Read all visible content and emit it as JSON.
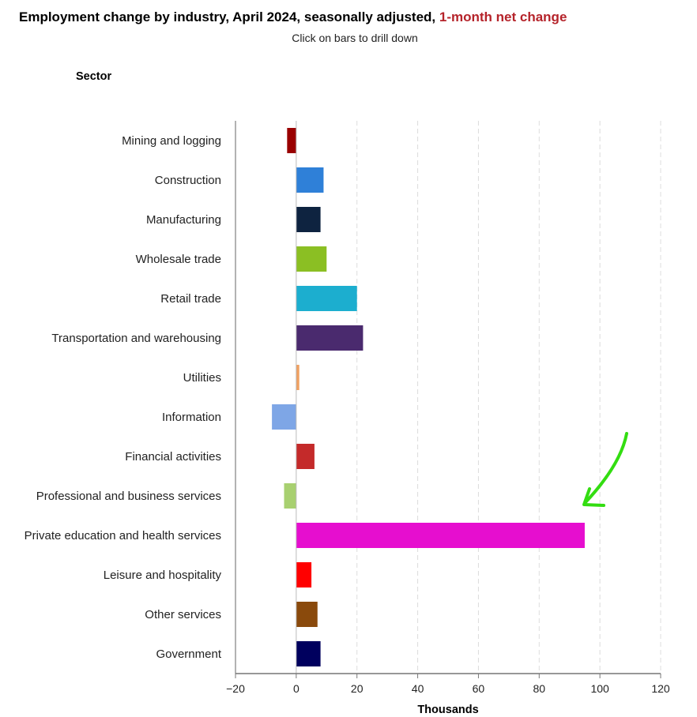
{
  "header": {
    "title_main": "Employment change by industry, April 2024, seasonally adjusted, ",
    "title_accent": "1-month net change",
    "subtitle": "Click on bars to drill down",
    "sector_label": "Sector"
  },
  "chart_data": {
    "type": "bar",
    "orientation": "horizontal",
    "categories": [
      "Mining and logging",
      "Construction",
      "Manufacturing",
      "Wholesale trade",
      "Retail trade",
      "Transportation and warehousing",
      "Utilities",
      "Information",
      "Financial activities",
      "Professional and business services",
      "Private education and health services",
      "Leisure and hospitality",
      "Other services",
      "Government"
    ],
    "values": [
      -3,
      9,
      8,
      10,
      20,
      22,
      1,
      -8,
      6,
      -4,
      95,
      5,
      7,
      8
    ],
    "colors": [
      "#990000",
      "#2f80d8",
      "#0e2340",
      "#8bbf23",
      "#1caecf",
      "#4a2a6e",
      "#f0a060",
      "#7ea6e6",
      "#c42a2a",
      "#a8d070",
      "#e60ecf",
      "#ff0000",
      "#8a4a0c",
      "#00005e"
    ],
    "xlim": [
      -20,
      120
    ],
    "xticks": [
      "−20",
      "0",
      "20",
      "40",
      "60",
      "80",
      "100",
      "120"
    ],
    "xtick_values": [
      -20,
      0,
      20,
      40,
      60,
      80,
      100,
      120
    ],
    "xlabel": "Thousands",
    "grid": "vertical dashed",
    "annotation": "green arrow pointing to Private education and health services bar"
  }
}
